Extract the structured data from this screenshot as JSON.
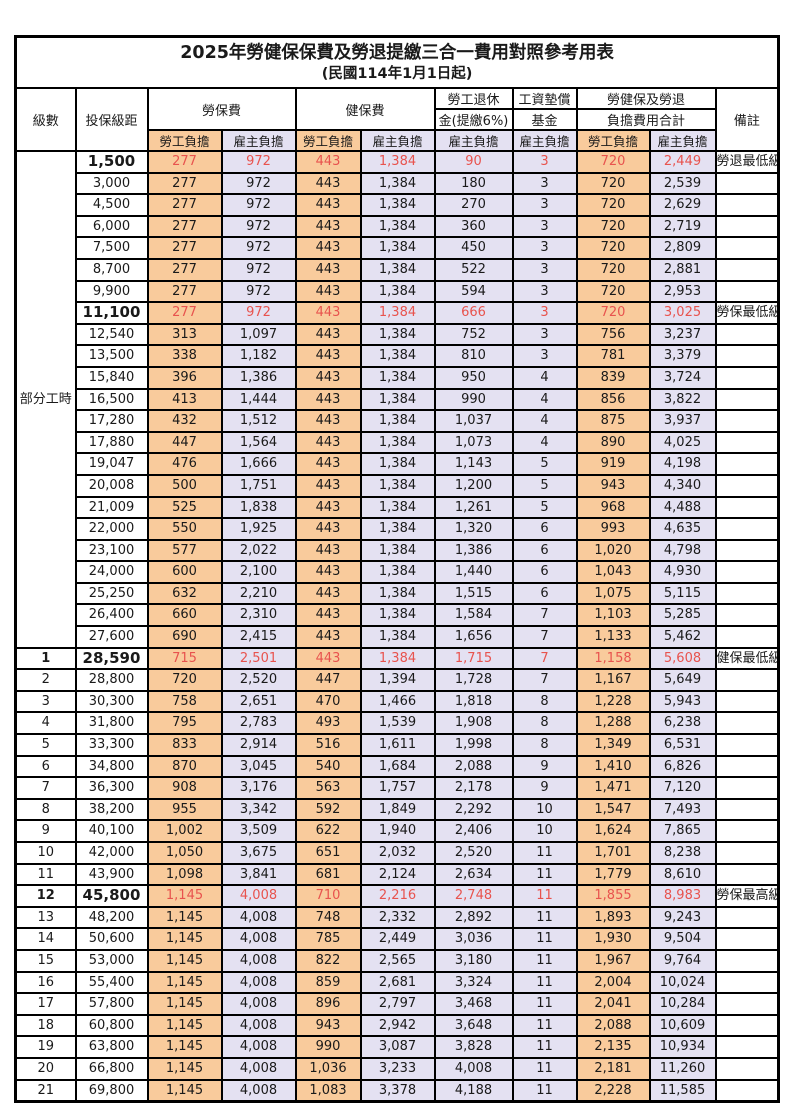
{
  "title": "2025年勞健保保費及勞退提繳三合一費用對照參考用表",
  "subtitle": "(民國114年1月1日起)",
  "colors": {
    "employee_share_bg": "#f9cb9c",
    "employer_share_bg": "#e4e1f2",
    "highlight_text": "#e8534e",
    "border": "#000000"
  },
  "header": {
    "level": "級數",
    "bracket": "投保級距",
    "labor_insurance": "勞保費",
    "health_insurance": "健保費",
    "pension_line1": "勞工退休",
    "pension_line2": "金(提繳6%)",
    "wage_fund_line1": "工資墊償",
    "wage_fund_line2": "基金",
    "total_line1": "勞健保及勞退",
    "total_line2": "負擔費用合計",
    "remark": "備註",
    "employee_share": "勞工負擔",
    "employer_share": "雇主負擔"
  },
  "part_time_label": "部分工時",
  "rows": [
    {
      "group": "pt",
      "level": "",
      "bracket": "1,500",
      "values": [
        "277",
        "972",
        "443",
        "1,384",
        "90",
        "3",
        "720",
        "2,449"
      ],
      "remark": "勞退最低級距",
      "highlight": true
    },
    {
      "group": "pt",
      "level": "",
      "bracket": "3,000",
      "values": [
        "277",
        "972",
        "443",
        "1,384",
        "180",
        "3",
        "720",
        "2,539"
      ],
      "remark": "",
      "highlight": false
    },
    {
      "group": "pt",
      "level": "",
      "bracket": "4,500",
      "values": [
        "277",
        "972",
        "443",
        "1,384",
        "270",
        "3",
        "720",
        "2,629"
      ],
      "remark": "",
      "highlight": false
    },
    {
      "group": "pt",
      "level": "",
      "bracket": "6,000",
      "values": [
        "277",
        "972",
        "443",
        "1,384",
        "360",
        "3",
        "720",
        "2,719"
      ],
      "remark": "",
      "highlight": false
    },
    {
      "group": "pt",
      "level": "",
      "bracket": "7,500",
      "values": [
        "277",
        "972",
        "443",
        "1,384",
        "450",
        "3",
        "720",
        "2,809"
      ],
      "remark": "",
      "highlight": false
    },
    {
      "group": "pt",
      "level": "",
      "bracket": "8,700",
      "values": [
        "277",
        "972",
        "443",
        "1,384",
        "522",
        "3",
        "720",
        "2,881"
      ],
      "remark": "",
      "highlight": false
    },
    {
      "group": "pt",
      "level": "",
      "bracket": "9,900",
      "values": [
        "277",
        "972",
        "443",
        "1,384",
        "594",
        "3",
        "720",
        "2,953"
      ],
      "remark": "",
      "highlight": false
    },
    {
      "group": "pt",
      "level": "",
      "bracket": "11,100",
      "values": [
        "277",
        "972",
        "443",
        "1,384",
        "666",
        "3",
        "720",
        "3,025"
      ],
      "remark": "勞保最低級距",
      "highlight": true
    },
    {
      "group": "pt",
      "level": "",
      "bracket": "12,540",
      "values": [
        "313",
        "1,097",
        "443",
        "1,384",
        "752",
        "3",
        "756",
        "3,237"
      ],
      "remark": "",
      "highlight": false
    },
    {
      "group": "pt",
      "level": "",
      "bracket": "13,500",
      "values": [
        "338",
        "1,182",
        "443",
        "1,384",
        "810",
        "3",
        "781",
        "3,379"
      ],
      "remark": "",
      "highlight": false
    },
    {
      "group": "pt",
      "level": "",
      "bracket": "15,840",
      "values": [
        "396",
        "1,386",
        "443",
        "1,384",
        "950",
        "4",
        "839",
        "3,724"
      ],
      "remark": "",
      "highlight": false
    },
    {
      "group": "pt",
      "level": "",
      "bracket": "16,500",
      "values": [
        "413",
        "1,444",
        "443",
        "1,384",
        "990",
        "4",
        "856",
        "3,822"
      ],
      "remark": "",
      "highlight": false
    },
    {
      "group": "pt",
      "level": "",
      "bracket": "17,280",
      "values": [
        "432",
        "1,512",
        "443",
        "1,384",
        "1,037",
        "4",
        "875",
        "3,937"
      ],
      "remark": "",
      "highlight": false
    },
    {
      "group": "pt",
      "level": "",
      "bracket": "17,880",
      "values": [
        "447",
        "1,564",
        "443",
        "1,384",
        "1,073",
        "4",
        "890",
        "4,025"
      ],
      "remark": "",
      "highlight": false
    },
    {
      "group": "pt",
      "level": "",
      "bracket": "19,047",
      "values": [
        "476",
        "1,666",
        "443",
        "1,384",
        "1,143",
        "5",
        "919",
        "4,198"
      ],
      "remark": "",
      "highlight": false
    },
    {
      "group": "pt",
      "level": "",
      "bracket": "20,008",
      "values": [
        "500",
        "1,751",
        "443",
        "1,384",
        "1,200",
        "5",
        "943",
        "4,340"
      ],
      "remark": "",
      "highlight": false
    },
    {
      "group": "pt",
      "level": "",
      "bracket": "21,009",
      "values": [
        "525",
        "1,838",
        "443",
        "1,384",
        "1,261",
        "5",
        "968",
        "4,488"
      ],
      "remark": "",
      "highlight": false
    },
    {
      "group": "pt",
      "level": "",
      "bracket": "22,000",
      "values": [
        "550",
        "1,925",
        "443",
        "1,384",
        "1,320",
        "6",
        "993",
        "4,635"
      ],
      "remark": "",
      "highlight": false
    },
    {
      "group": "pt",
      "level": "",
      "bracket": "23,100",
      "values": [
        "577",
        "2,022",
        "443",
        "1,384",
        "1,386",
        "6",
        "1,020",
        "4,798"
      ],
      "remark": "",
      "highlight": false
    },
    {
      "group": "pt",
      "level": "",
      "bracket": "24,000",
      "values": [
        "600",
        "2,100",
        "443",
        "1,384",
        "1,440",
        "6",
        "1,043",
        "4,930"
      ],
      "remark": "",
      "highlight": false
    },
    {
      "group": "pt",
      "level": "",
      "bracket": "25,250",
      "values": [
        "632",
        "2,210",
        "443",
        "1,384",
        "1,515",
        "6",
        "1,075",
        "5,115"
      ],
      "remark": "",
      "highlight": false
    },
    {
      "group": "pt",
      "level": "",
      "bracket": "26,400",
      "values": [
        "660",
        "2,310",
        "443",
        "1,384",
        "1,584",
        "7",
        "1,103",
        "5,285"
      ],
      "remark": "",
      "highlight": false
    },
    {
      "group": "pt",
      "level": "",
      "bracket": "27,600",
      "values": [
        "690",
        "2,415",
        "443",
        "1,384",
        "1,656",
        "7",
        "1,133",
        "5,462"
      ],
      "remark": "",
      "highlight": false
    },
    {
      "group": "num",
      "level": "1",
      "bracket": "28,590",
      "values": [
        "715",
        "2,501",
        "443",
        "1,384",
        "1,715",
        "7",
        "1,158",
        "5,608"
      ],
      "remark": "健保最低級距",
      "highlight": true
    },
    {
      "group": "num",
      "level": "2",
      "bracket": "28,800",
      "values": [
        "720",
        "2,520",
        "447",
        "1,394",
        "1,728",
        "7",
        "1,167",
        "5,649"
      ],
      "remark": "",
      "highlight": false
    },
    {
      "group": "num",
      "level": "3",
      "bracket": "30,300",
      "values": [
        "758",
        "2,651",
        "470",
        "1,466",
        "1,818",
        "8",
        "1,228",
        "5,943"
      ],
      "remark": "",
      "highlight": false
    },
    {
      "group": "num",
      "level": "4",
      "bracket": "31,800",
      "values": [
        "795",
        "2,783",
        "493",
        "1,539",
        "1,908",
        "8",
        "1,288",
        "6,238"
      ],
      "remark": "",
      "highlight": false
    },
    {
      "group": "num",
      "level": "5",
      "bracket": "33,300",
      "values": [
        "833",
        "2,914",
        "516",
        "1,611",
        "1,998",
        "8",
        "1,349",
        "6,531"
      ],
      "remark": "",
      "highlight": false
    },
    {
      "group": "num",
      "level": "6",
      "bracket": "34,800",
      "values": [
        "870",
        "3,045",
        "540",
        "1,684",
        "2,088",
        "9",
        "1,410",
        "6,826"
      ],
      "remark": "",
      "highlight": false
    },
    {
      "group": "num",
      "level": "7",
      "bracket": "36,300",
      "values": [
        "908",
        "3,176",
        "563",
        "1,757",
        "2,178",
        "9",
        "1,471",
        "7,120"
      ],
      "remark": "",
      "highlight": false
    },
    {
      "group": "num",
      "level": "8",
      "bracket": "38,200",
      "values": [
        "955",
        "3,342",
        "592",
        "1,849",
        "2,292",
        "10",
        "1,547",
        "7,493"
      ],
      "remark": "",
      "highlight": false
    },
    {
      "group": "num",
      "level": "9",
      "bracket": "40,100",
      "values": [
        "1,002",
        "3,509",
        "622",
        "1,940",
        "2,406",
        "10",
        "1,624",
        "7,865"
      ],
      "remark": "",
      "highlight": false
    },
    {
      "group": "num",
      "level": "10",
      "bracket": "42,000",
      "values": [
        "1,050",
        "3,675",
        "651",
        "2,032",
        "2,520",
        "11",
        "1,701",
        "8,238"
      ],
      "remark": "",
      "highlight": false
    },
    {
      "group": "num",
      "level": "11",
      "bracket": "43,900",
      "values": [
        "1,098",
        "3,841",
        "681",
        "2,124",
        "2,634",
        "11",
        "1,779",
        "8,610"
      ],
      "remark": "",
      "highlight": false
    },
    {
      "group": "num",
      "level": "12",
      "bracket": "45,800",
      "values": [
        "1,145",
        "4,008",
        "710",
        "2,216",
        "2,748",
        "11",
        "1,855",
        "8,983"
      ],
      "remark": "勞保最高級距",
      "highlight": true
    },
    {
      "group": "num",
      "level": "13",
      "bracket": "48,200",
      "values": [
        "1,145",
        "4,008",
        "748",
        "2,332",
        "2,892",
        "11",
        "1,893",
        "9,243"
      ],
      "remark": "",
      "highlight": false
    },
    {
      "group": "num",
      "level": "14",
      "bracket": "50,600",
      "values": [
        "1,145",
        "4,008",
        "785",
        "2,449",
        "3,036",
        "11",
        "1,930",
        "9,504"
      ],
      "remark": "",
      "highlight": false
    },
    {
      "group": "num",
      "level": "15",
      "bracket": "53,000",
      "values": [
        "1,145",
        "4,008",
        "822",
        "2,565",
        "3,180",
        "11",
        "1,967",
        "9,764"
      ],
      "remark": "",
      "highlight": false
    },
    {
      "group": "num",
      "level": "16",
      "bracket": "55,400",
      "values": [
        "1,145",
        "4,008",
        "859",
        "2,681",
        "3,324",
        "11",
        "2,004",
        "10,024"
      ],
      "remark": "",
      "highlight": false
    },
    {
      "group": "num",
      "level": "17",
      "bracket": "57,800",
      "values": [
        "1,145",
        "4,008",
        "896",
        "2,797",
        "3,468",
        "11",
        "2,041",
        "10,284"
      ],
      "remark": "",
      "highlight": false
    },
    {
      "group": "num",
      "level": "18",
      "bracket": "60,800",
      "values": [
        "1,145",
        "4,008",
        "943",
        "2,942",
        "3,648",
        "11",
        "2,088",
        "10,609"
      ],
      "remark": "",
      "highlight": false
    },
    {
      "group": "num",
      "level": "19",
      "bracket": "63,800",
      "values": [
        "1,145",
        "4,008",
        "990",
        "3,087",
        "3,828",
        "11",
        "2,135",
        "10,934"
      ],
      "remark": "",
      "highlight": false
    },
    {
      "group": "num",
      "level": "20",
      "bracket": "66,800",
      "values": [
        "1,145",
        "4,008",
        "1,036",
        "3,233",
        "4,008",
        "11",
        "2,181",
        "11,260"
      ],
      "remark": "",
      "highlight": false
    },
    {
      "group": "num",
      "level": "21",
      "bracket": "69,800",
      "values": [
        "1,145",
        "4,008",
        "1,083",
        "3,378",
        "4,188",
        "11",
        "2,228",
        "11,585"
      ],
      "remark": "",
      "highlight": false
    }
  ]
}
